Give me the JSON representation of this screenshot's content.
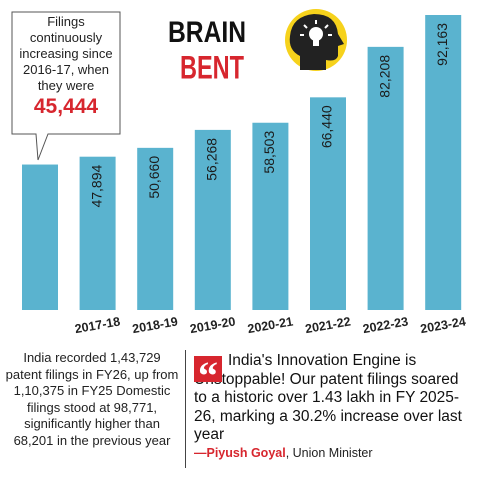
{
  "chart_data": {
    "type": "bar",
    "title": "BRAIN",
    "title_accent": "BENT",
    "callout": "Filings continuously increasing since 2016-17, when they were",
    "categories": [
      null,
      "2017-18",
      "2018-19",
      "2019-20",
      "2020-21",
      "2021-22",
      "2022-23",
      "2023-24"
    ],
    "values": [
      45444,
      47894,
      50660,
      56268,
      58503,
      66440,
      82208,
      92163
    ],
    "value_labels": [
      "45,444",
      "47,894",
      "50,660",
      "56,268",
      "58,503",
      "66,440",
      "82,208",
      "92,163"
    ],
    "color": "#5ab3cf",
    "callout_value_color": "#d7262e",
    "accent_color": "#d7262e"
  },
  "note": "India recorded 1,43,729 patent filings in FY26, up from 1,10,375 in FY25 Domestic filings stood at 98,771, significantly higher than 68,201 in the previous year",
  "quote": "India's Innovation Engine is Unstoppable! Our patent filings soared to a historic over 1.43 lakh in FY 2025-26, marking a 30.2% increase over last year",
  "attribution": {
    "name": "—Piyush Goyal",
    "role": ", Union Minister"
  }
}
